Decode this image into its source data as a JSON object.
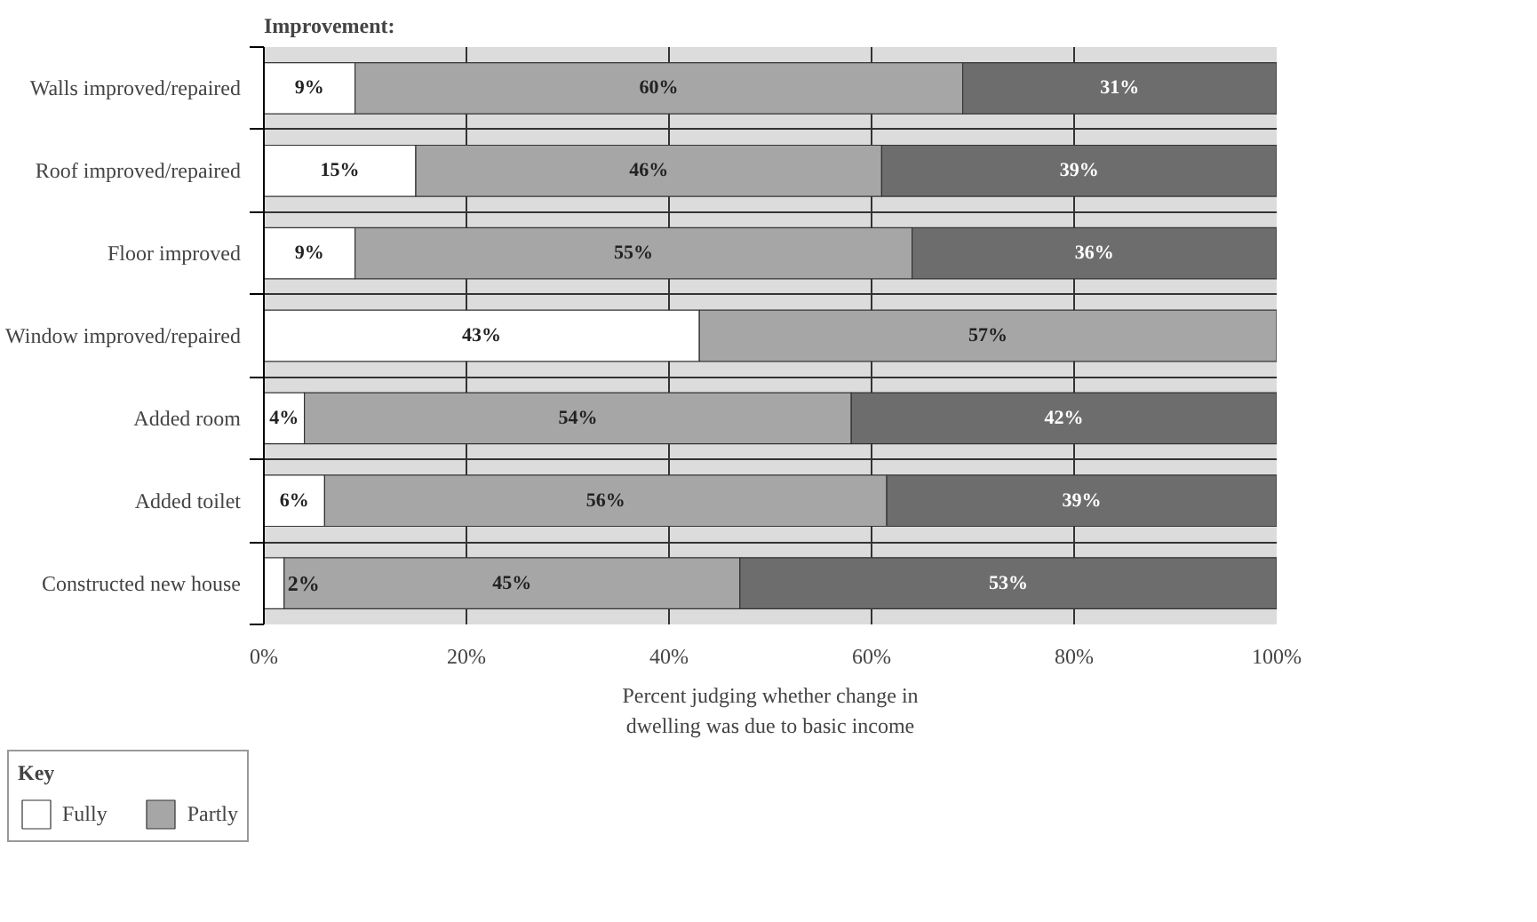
{
  "chart_data": {
    "type": "bar",
    "orientation": "horizontal",
    "stacked": true,
    "ylabel": "Improvement:",
    "xlabel": "Percent judging whether change in\ndwelling was due to basic income",
    "legend_title": "Key",
    "legend": "bottom left",
    "grid": true,
    "categories": [
      "Walls improved/repaired",
      "Roof improved/repaired",
      "Floor improved",
      "Window improved/repaired",
      "Added room",
      "Added toilet",
      "Constructed new house"
    ],
    "xlim": [
      0,
      100
    ],
    "xticks": [
      {
        "value": 0,
        "label": "0%"
      },
      {
        "value": 20,
        "label": "20%"
      },
      {
        "value": 40,
        "label": "40%"
      },
      {
        "value": 60,
        "label": "60%"
      },
      {
        "value": 80,
        "label": "80%"
      },
      {
        "value": 100,
        "label": "100%"
      }
    ],
    "series": [
      {
        "name": "Fully",
        "color": "#ffffff",
        "values": [
          9,
          15,
          9,
          43,
          4,
          6,
          2
        ],
        "value_labels": [
          "9%",
          "15%",
          "9%",
          "43%",
          "4%",
          "6%",
          "2%"
        ]
      },
      {
        "name": "Partly",
        "color": "#a6a6a6",
        "values": [
          60,
          46,
          55,
          57,
          54,
          55.5,
          45
        ],
        "value_labels": [
          "60%",
          "46%",
          "55%",
          "57%",
          "54%",
          "56%",
          "45%"
        ]
      },
      {
        "color": "#6d6d6e",
        "values": [
          31,
          39,
          36,
          null,
          42,
          38.5,
          53
        ],
        "value_labels": [
          "31%",
          "39%",
          "36%",
          null,
          "42%",
          "39%",
          "53%"
        ]
      }
    ]
  }
}
